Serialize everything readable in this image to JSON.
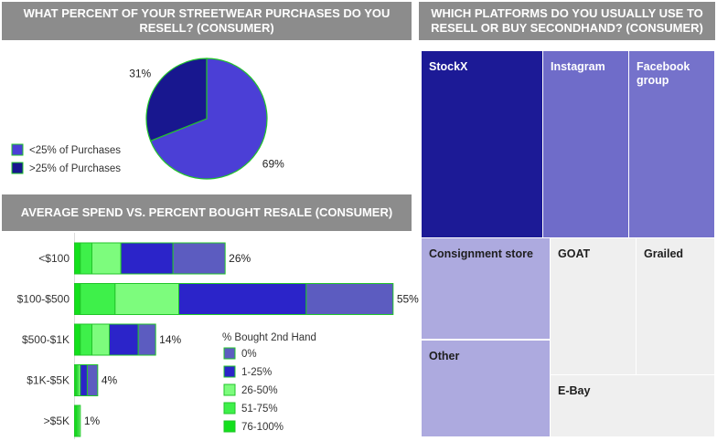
{
  "colors": {
    "title_bg": "#8c8c8c",
    "pie_less": "#4b3fd6",
    "pie_more": "#18178f",
    "bar_outline": "#22c52a",
    "seg_0": "#5c5cc0",
    "seg_1_25": "#2b24c9",
    "seg_26_50": "#7dfc7d",
    "seg_51_75": "#3ef04a",
    "seg_76_100": "#12e01c"
  },
  "titles": {
    "pie": "WHAT PERCENT OF YOUR STREETWEAR PURCHASES DO YOU RESELL? (CONSUMER)",
    "bar": "AVERAGE SPEND VS. PERCENT BOUGHT RESALE (CONSUMER)",
    "treemap": "WHICH PLATFORMS DO YOU USUALLY USE TO RESELL OR BUY SECONDHAND? (CONSUMER)"
  },
  "chart_data": [
    {
      "type": "pie",
      "title": "WHAT PERCENT OF YOUR STREETWEAR PURCHASES DO YOU RESELL? (CONSUMER)",
      "slices": [
        {
          "label": "<25% of Purchases",
          "value": 69,
          "display": "69%",
          "color": "#4b3fd6"
        },
        {
          "label": ">25% of Purchases",
          "value": 31,
          "display": "31%",
          "color": "#18178f"
        }
      ],
      "legend_position": "left"
    },
    {
      "type": "bar",
      "orientation": "horizontal",
      "stacked": true,
      "title": "AVERAGE SPEND VS. PERCENT BOUGHT RESALE (CONSUMER)",
      "categories": [
        "<$100",
        "$100-$500",
        "$500-$1K",
        "$1K-$5K",
        ">$5K"
      ],
      "totals": [
        26,
        55,
        14,
        4,
        1
      ],
      "total_labels": [
        "26%",
        "55%",
        "14%",
        "4%",
        "1%"
      ],
      "legend_title": "% Bought 2nd Hand",
      "series": [
        {
          "name": "76-100%",
          "color": "#12e01c",
          "values": [
            1,
            1,
            1,
            0.3,
            0.4
          ]
        },
        {
          "name": "51-75%",
          "color": "#3ef04a",
          "values": [
            2,
            6,
            2,
            0.3,
            0.3
          ]
        },
        {
          "name": "26-50%",
          "color": "#7dfc7d",
          "values": [
            5,
            11,
            3,
            0.4,
            0.3
          ]
        },
        {
          "name": "1-25%",
          "color": "#2b24c9",
          "values": [
            9,
            22,
            5,
            1.2,
            0
          ]
        },
        {
          "name": "0%",
          "color": "#5c5cc0",
          "values": [
            9,
            15,
            3,
            1.8,
            0
          ]
        }
      ],
      "legend_order": [
        "0%",
        "1-25%",
        "26-50%",
        "51-75%",
        "76-100%"
      ],
      "xlim": [
        0,
        60
      ],
      "legend_position": "bottom-right"
    },
    {
      "type": "treemap",
      "title": "WHICH PLATFORMS DO YOU USUALLY USE TO RESELL OR BUY SECONDHAND? (CONSUMER)",
      "items": [
        {
          "label": "StockX"
        },
        {
          "label": "Instagram"
        },
        {
          "label": "Facebook group"
        },
        {
          "label": "Consignment store"
        },
        {
          "label": "GOAT"
        },
        {
          "label": "Grailed"
        },
        {
          "label": "Other"
        },
        {
          "label": "E-Bay"
        }
      ]
    }
  ]
}
